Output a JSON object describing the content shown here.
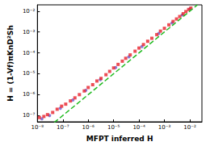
{
  "chart_data": {
    "type": "scatter",
    "x_label": "MFPT inferred H",
    "y_label": "H = (1-Vf)πKnD²Sh",
    "log": true,
    "grid": false,
    "xlim": [
      1e-08,
      0.03
    ],
    "ylim": [
      5e-08,
      0.02
    ],
    "xticks": [
      {
        "value": 1e-08,
        "label": "10⁻⁸"
      },
      {
        "value": 1e-07,
        "label": "10⁻⁷"
      },
      {
        "value": 1e-06,
        "label": "10⁻⁶"
      },
      {
        "value": 1e-05,
        "label": "10⁻⁵"
      },
      {
        "value": 0.0001,
        "label": "10⁻⁴"
      },
      {
        "value": 0.001,
        "label": "10⁻³"
      },
      {
        "value": 0.01,
        "label": "10⁻²"
      }
    ],
    "yticks": [
      {
        "value": 1e-07,
        "label": "10⁻⁷"
      },
      {
        "value": 1e-06,
        "label": "10⁻⁶"
      },
      {
        "value": 1e-05,
        "label": "10⁻⁵"
      },
      {
        "value": 0.0001,
        "label": "10⁻⁴"
      },
      {
        "value": 0.001,
        "label": "10⁻³"
      },
      {
        "value": 0.01,
        "label": "10⁻²"
      }
    ],
    "series": [
      {
        "type": "scatter",
        "color": "#6a5acd",
        "marker": "circle",
        "values": [
          [
            1.5e-08,
            7e-08
          ],
          [
            3e-08,
            1e-07
          ],
          [
            8e-08,
            2.2e-07
          ],
          [
            2.5e-07,
            5.5e-07
          ],
          [
            8e-07,
            1.6e-06
          ],
          [
            3e-06,
            5.2e-06
          ],
          [
            1.2e-05,
            2e-05
          ],
          [
            4e-05,
            6.5e-05
          ],
          [
            0.00013,
            0.0002
          ],
          [
            0.0006,
            0.00085
          ],
          [
            0.002,
            0.0027
          ],
          [
            0.005,
            0.0065
          ],
          [
            0.01,
            0.0125
          ]
        ]
      },
      {
        "type": "scatter",
        "color": "#e8202a",
        "marker": "square",
        "values": [
          [
            1.2e-08,
            8e-08
          ],
          [
            1.8e-08,
            9e-08
          ],
          [
            2.5e-08,
            1.1e-07
          ],
          [
            4e-08,
            1.4e-07
          ],
          [
            6e-08,
            2e-07
          ],
          [
            9e-08,
            2.8e-07
          ],
          [
            1.3e-07,
            3.5e-07
          ],
          [
            2e-07,
            5e-07
          ],
          [
            3e-07,
            7e-07
          ],
          [
            4.5e-07,
            1e-06
          ],
          [
            7e-07,
            1.5e-06
          ],
          [
            1e-06,
            2.2e-06
          ],
          [
            1.5e-06,
            3e-06
          ],
          [
            2.2e-06,
            4.5e-06
          ],
          [
            3.2e-06,
            6e-06
          ],
          [
            5e-06,
            9e-06
          ],
          [
            7e-06,
            1.3e-05
          ],
          [
            1e-05,
            1.9e-05
          ],
          [
            1.5e-05,
            2.8e-05
          ],
          [
            2.2e-05,
            4e-05
          ],
          [
            3e-05,
            5.5e-05
          ],
          [
            4.5e-05,
            8e-05
          ],
          [
            7e-05,
            0.00012
          ],
          [
            0.0001,
            0.00017
          ],
          [
            0.00015,
            0.00025
          ],
          [
            0.00022,
            0.00036
          ],
          [
            0.00032,
            0.0005
          ],
          [
            0.0005,
            0.00075
          ],
          [
            0.0007,
            0.0011
          ],
          [
            0.001,
            0.0015
          ],
          [
            0.0015,
            0.0022
          ],
          [
            0.0022,
            0.0032
          ],
          [
            0.003,
            0.0042
          ],
          [
            0.004,
            0.0055
          ],
          [
            0.0055,
            0.0075
          ],
          [
            0.007,
            0.0095
          ],
          [
            0.009,
            0.012
          ],
          [
            0.011,
            0.014
          ]
        ]
      },
      {
        "type": "line",
        "color": "#22bb22",
        "line_style": "dashed",
        "values": [
          [
            1e-08,
            1e-08
          ],
          [
            0.02,
            0.02
          ]
        ]
      }
    ]
  }
}
